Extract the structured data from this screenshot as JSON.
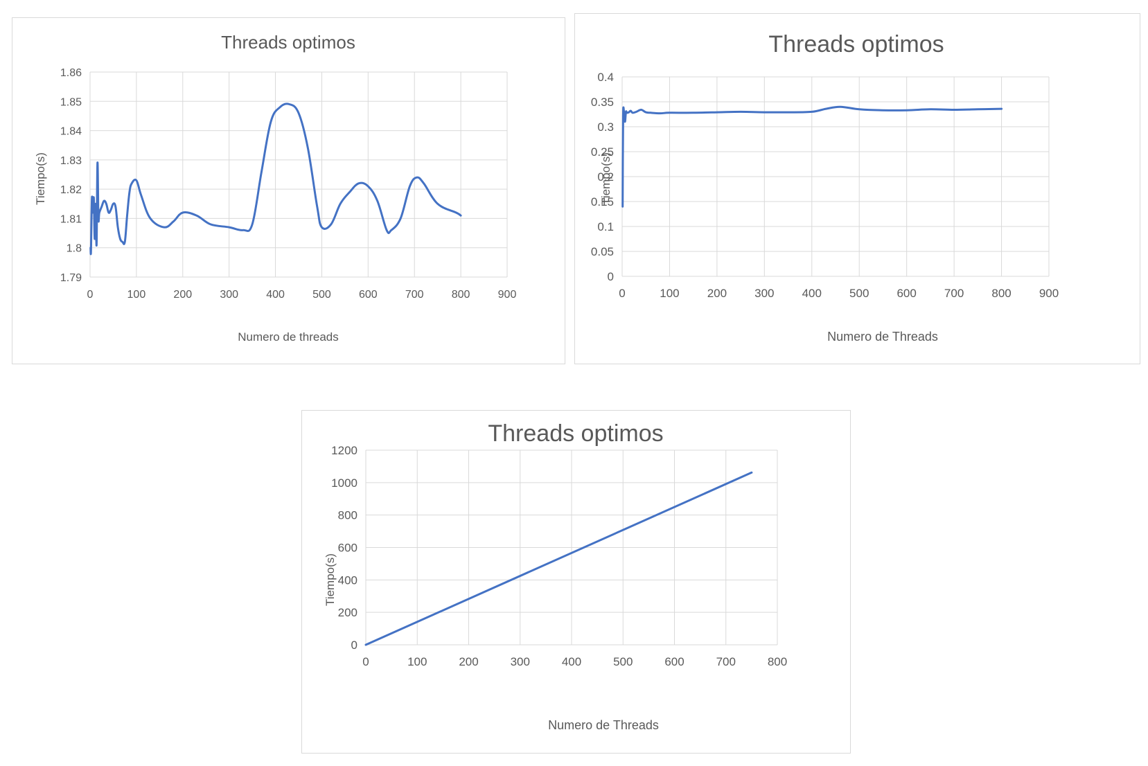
{
  "chart_data": [
    {
      "type": "line",
      "title": "Threads optimos",
      "xlabel": "Numero de threads",
      "ylabel": "Tiempo(s)",
      "xlim": [
        0,
        900
      ],
      "ylim": [
        1.79,
        1.86
      ],
      "xticks": [
        "0",
        "100",
        "200",
        "300",
        "400",
        "500",
        "600",
        "700",
        "800",
        "900"
      ],
      "yticks": [
        "1.79",
        "1.8",
        "1.81",
        "1.82",
        "1.83",
        "1.84",
        "1.85",
        "1.86"
      ],
      "grid": true,
      "legend": "none",
      "color": "#4472c4",
      "series": [
        {
          "x": [
            1,
            2,
            4,
            6,
            8,
            10,
            12,
            14,
            16,
            18,
            20,
            25,
            30,
            35,
            40,
            45,
            50,
            55,
            60,
            65,
            70,
            75,
            80,
            85,
            90,
            100,
            110,
            130,
            160,
            180,
            200,
            230,
            260,
            300,
            330,
            350,
            370,
            390,
            410,
            430,
            450,
            470,
            490,
            500,
            520,
            540,
            560,
            580,
            600,
            620,
            640,
            650,
            670,
            690,
            705,
            720,
            750,
            790,
            800
          ],
          "y": [
            1.8,
            1.799,
            1.817,
            1.812,
            1.817,
            1.803,
            1.815,
            1.801,
            1.829,
            1.81,
            1.812,
            1.814,
            1.816,
            1.815,
            1.812,
            1.813,
            1.815,
            1.814,
            1.807,
            1.803,
            1.802,
            1.802,
            1.811,
            1.819,
            1.822,
            1.823,
            1.818,
            1.81,
            1.807,
            1.809,
            1.812,
            1.811,
            1.808,
            1.807,
            1.806,
            1.808,
            1.826,
            1.843,
            1.848,
            1.849,
            1.846,
            1.834,
            1.814,
            1.807,
            1.808,
            1.815,
            1.819,
            1.822,
            1.821,
            1.816,
            1.806,
            1.806,
            1.81,
            1.821,
            1.824,
            1.822,
            1.815,
            1.812,
            1.811
          ]
        }
      ]
    },
    {
      "type": "line",
      "title": "Threads optimos",
      "xlabel": "Numero  de Threads",
      "ylabel": "Tiempo(s)",
      "xlim": [
        0,
        900
      ],
      "ylim": [
        0,
        0.4
      ],
      "xticks": [
        "0",
        "100",
        "200",
        "300",
        "400",
        "500",
        "600",
        "700",
        "800",
        "900"
      ],
      "yticks": [
        "0",
        "0.05",
        "0.1",
        "0.15",
        "0.2",
        "0.25",
        "0.3",
        "0.35",
        "0.4"
      ],
      "grid": true,
      "legend": "none",
      "color": "#4472c4",
      "series": [
        {
          "x": [
            1,
            2,
            4,
            6,
            8,
            10,
            14,
            18,
            22,
            30,
            40,
            50,
            60,
            80,
            100,
            150,
            200,
            250,
            300,
            350,
            400,
            430,
            460,
            500,
            550,
            600,
            650,
            700,
            750,
            800
          ],
          "y": [
            0.14,
            0.32,
            0.33,
            0.31,
            0.33,
            0.328,
            0.329,
            0.332,
            0.328,
            0.33,
            0.334,
            0.329,
            0.328,
            0.327,
            0.328,
            0.328,
            0.329,
            0.33,
            0.329,
            0.329,
            0.33,
            0.336,
            0.34,
            0.335,
            0.333,
            0.333,
            0.335,
            0.334,
            0.335,
            0.336
          ]
        }
      ]
    },
    {
      "type": "line",
      "title": "Threads optimos",
      "xlabel": "Numero  de Threads",
      "ylabel": "Tiempo(s)",
      "xlim": [
        0,
        800
      ],
      "ylim": [
        0,
        1200
      ],
      "xticks": [
        "0",
        "100",
        "200",
        "300",
        "400",
        "500",
        "600",
        "700",
        "800"
      ],
      "yticks": [
        "0",
        "200",
        "400",
        "600",
        "800",
        "1000",
        "1200"
      ],
      "grid": true,
      "legend": "none",
      "color": "#4472c4",
      "series": [
        {
          "x": [
            0,
            750
          ],
          "y": [
            0,
            1062
          ]
        }
      ]
    }
  ]
}
